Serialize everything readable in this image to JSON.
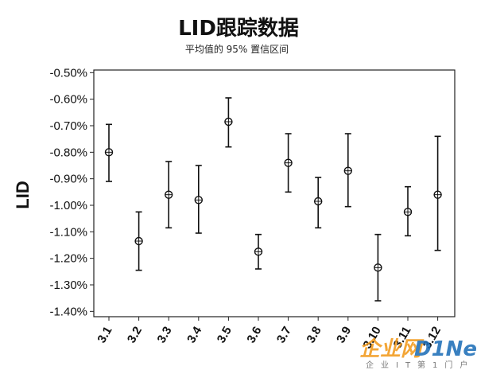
{
  "chart_data": {
    "type": "scatter",
    "title": "LID跟踪数据",
    "subtitle": "平均值的 95% 置信区间",
    "ylabel": "LID",
    "xlabel": "",
    "ylim": [
      -1.42,
      -0.49
    ],
    "ytick_values": [
      -0.5,
      -0.6,
      -0.7,
      -0.8,
      -0.9,
      -1.0,
      -1.1,
      -1.2,
      -1.3,
      -1.4
    ],
    "ytick_labels": [
      "-0.50%",
      "-0.60%",
      "-0.70%",
      "-0.80%",
      "-0.90%",
      "-1.00%",
      "-1.10%",
      "-1.20%",
      "-1.30%",
      "-1.40%"
    ],
    "categories": [
      "3.1",
      "3.2",
      "3.3",
      "3.4",
      "3.5",
      "3.6",
      "3.7",
      "3.8",
      "3.9",
      "3.10",
      "3.11",
      "3.12"
    ],
    "mean": [
      -0.8,
      -1.135,
      -0.96,
      -0.98,
      -0.685,
      -1.175,
      -0.84,
      -0.985,
      -0.87,
      -1.235,
      -1.025,
      -0.96
    ],
    "lower": [
      -0.91,
      -1.245,
      -1.085,
      -1.105,
      -0.78,
      -1.24,
      -0.95,
      -1.085,
      -1.005,
      -1.36,
      -1.115,
      -1.17
    ],
    "upper": [
      -0.695,
      -1.025,
      -0.835,
      -0.85,
      -0.595,
      -1.11,
      -0.73,
      -0.895,
      -0.73,
      -1.11,
      -0.93,
      -0.74
    ],
    "grid": false,
    "marker": "circle-with-crosshair"
  },
  "watermark": {
    "brand": "企业网",
    "brand2": "D1Net",
    "tagline": "企业IT第1门户",
    "color_orange": "#f29a1c",
    "color_blue": "#1e6fb8"
  }
}
